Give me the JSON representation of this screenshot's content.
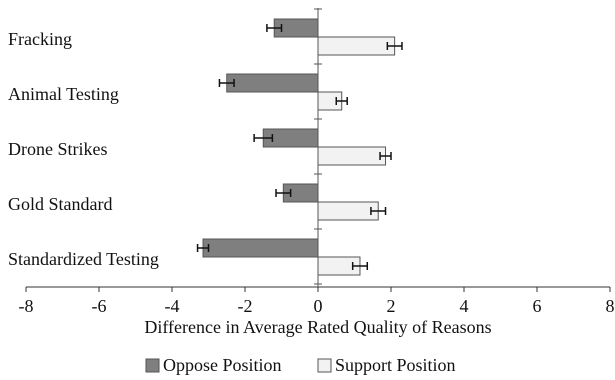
{
  "chart_data": {
    "type": "bar",
    "orientation": "horizontal",
    "categories": [
      "Fracking",
      "Animal Testing",
      "Drone Strikes",
      "Gold Standard",
      "Standardized Testing"
    ],
    "series": [
      {
        "name": "Oppose Position",
        "color": "#7f7f7f",
        "values": [
          -1.2,
          -2.5,
          -1.5,
          -0.95,
          -3.15
        ],
        "errors": [
          0.2,
          0.2,
          0.25,
          0.2,
          0.15
        ]
      },
      {
        "name": "Support Position",
        "color": "#f2f2f2",
        "values": [
          2.1,
          0.65,
          1.85,
          1.65,
          1.15
        ],
        "errors": [
          0.2,
          0.15,
          0.15,
          0.2,
          0.2
        ]
      }
    ],
    "xlabel": "Difference in Average Rated Quality of Reasons",
    "xlim": [
      -8,
      8
    ],
    "xticks": [
      "-8",
      "-6",
      "-4",
      "-2",
      "0",
      "2",
      "4",
      "6",
      "8"
    ],
    "grid": false,
    "legend_position": "bottom"
  }
}
